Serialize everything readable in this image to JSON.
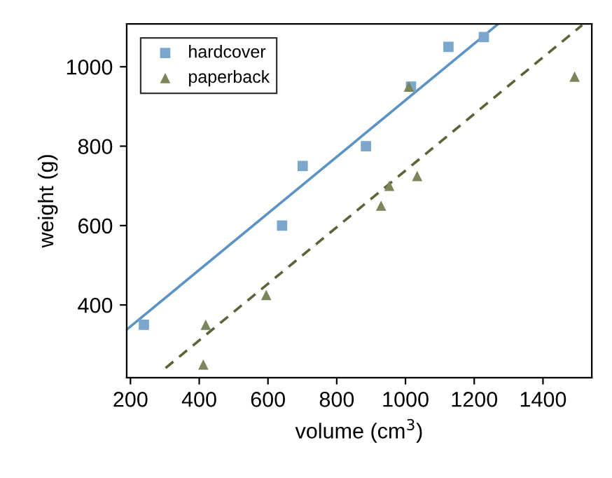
{
  "chart_data": {
    "type": "scatter",
    "xlabel": "volume (cm$^{3}$)",
    "ylabel": "weight (g)",
    "xlim": [
      189,
      1542
    ],
    "ylim": [
      217,
      1108
    ],
    "xticks": [
      200,
      400,
      600,
      800,
      1000,
      1200,
      1400
    ],
    "yticks": [
      400,
      600,
      800,
      1000
    ],
    "legend": "top left",
    "grid": false,
    "series": [
      {
        "name": "hardcover",
        "color": "#7ba7cc",
        "marker": "square",
        "x": [
          885,
          1016,
          1125,
          239,
          701,
          641,
          1228
        ],
        "values": [
          800,
          950,
          1050,
          350,
          750,
          600,
          1075
        ]
      },
      {
        "name": "paperback",
        "color": "#7a8659",
        "marker": "triangle",
        "x": [
          412,
          953,
          929,
          1492,
          419,
          1010,
          595,
          1034
        ],
        "values": [
          250,
          700,
          650,
          975,
          350,
          950,
          425,
          725
        ]
      },
      {
        "type": "line",
        "color": "#5a93c4",
        "line_style": "solid",
        "marker": "none",
        "x": [
          189,
          1270
        ],
        "values": [
          338,
          1108
        ]
      },
      {
        "type": "line",
        "color": "#5a6438",
        "line_style": "dashed",
        "marker": "none",
        "x": [
          302,
          1514
        ],
        "values": [
          241,
          1105
        ]
      }
    ]
  }
}
